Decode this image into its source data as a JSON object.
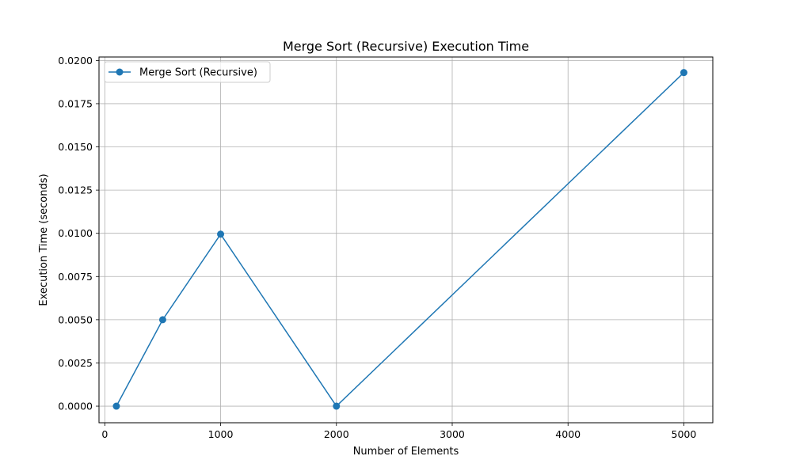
{
  "chart_data": {
    "type": "line",
    "title": "Merge Sort (Recursive) Execution Time",
    "xlabel": "Number of Elements",
    "ylabel": "Execution Time (seconds)",
    "xlim": [
      -50,
      5250
    ],
    "ylim": [
      -0.00096,
      0.0202
    ],
    "xticks": [
      0,
      1000,
      2000,
      3000,
      4000,
      5000
    ],
    "yticks": [
      0.0,
      0.0025,
      0.005,
      0.0075,
      0.01,
      0.0125,
      0.015,
      0.0175,
      0.02
    ],
    "ytick_labels": [
      "0.0000",
      "0.0025",
      "0.0050",
      "0.0075",
      "0.0100",
      "0.0125",
      "0.0150",
      "0.0175",
      "0.0200"
    ],
    "grid": true,
    "legend_position": "top-left",
    "series": [
      {
        "name": "Merge Sort (Recursive)",
        "color": "#1f77b4",
        "marker": "circle",
        "x": [
          100,
          500,
          1000,
          2000,
          5000
        ],
        "y": [
          0.0,
          0.005,
          0.00995,
          0.0,
          0.0193
        ]
      }
    ]
  }
}
